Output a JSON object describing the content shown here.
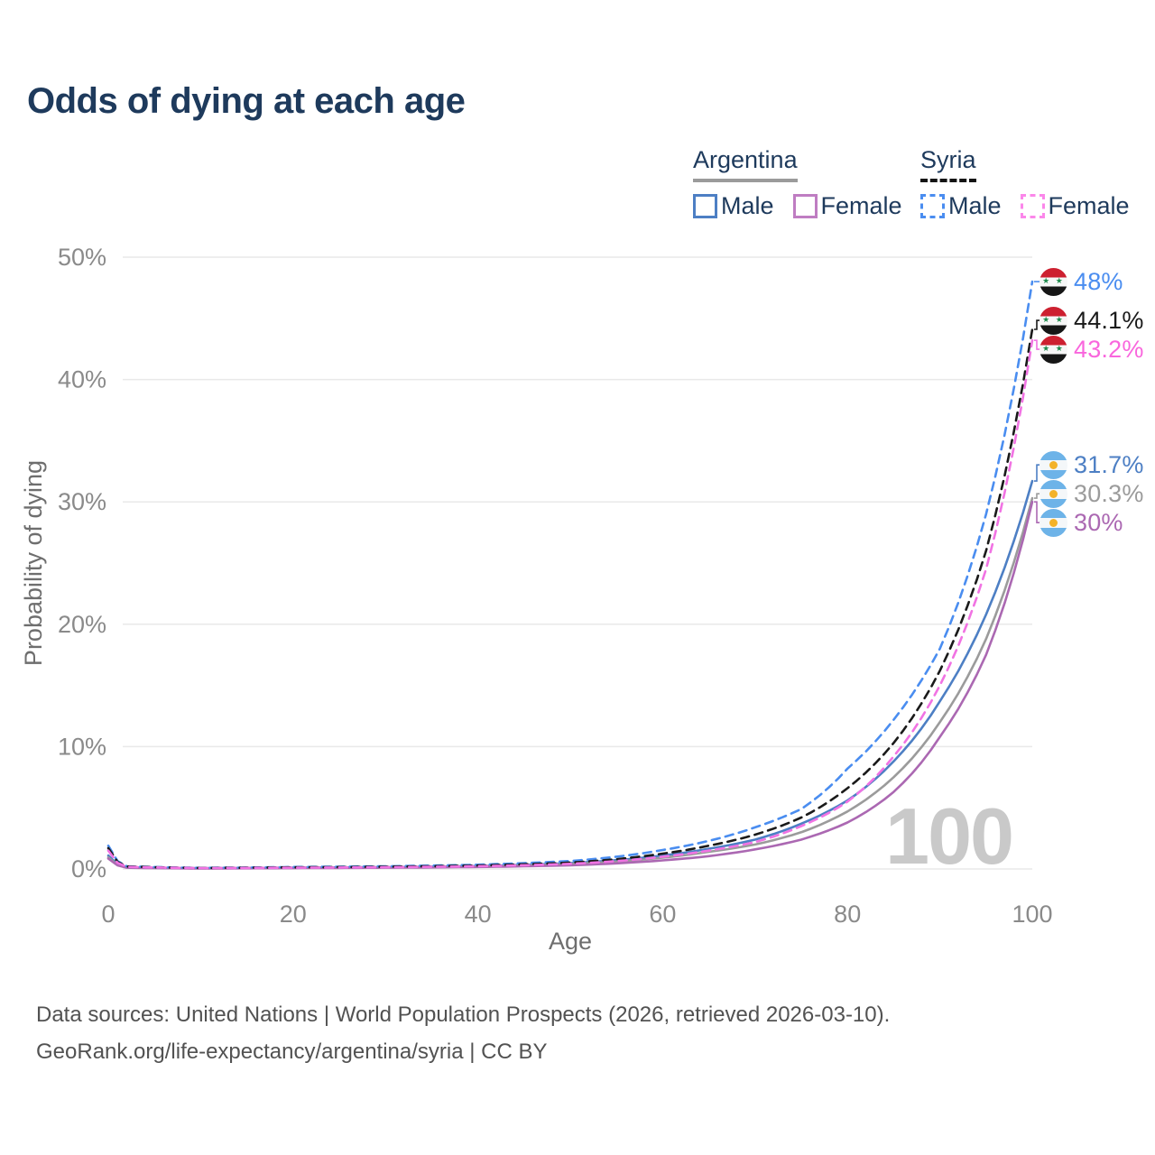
{
  "title": "Odds of dying at each age",
  "legend": {
    "groups": [
      {
        "country": "Argentina",
        "underline": {
          "color": "#9b9b9b",
          "dashed": false
        },
        "male": {
          "label": "Male",
          "color": "#4d7fc4",
          "dashed": false
        },
        "female": {
          "label": "Female",
          "color": "#bf7dc2",
          "dashed": false
        }
      },
      {
        "country": "Syria",
        "underline": {
          "color": "#141414",
          "dashed": true
        },
        "male": {
          "label": "Male",
          "color": "#4a8df0",
          "dashed": true
        },
        "female": {
          "label": "Female",
          "color": "#fb87ea",
          "dashed": true
        }
      }
    ]
  },
  "chart_data": {
    "type": "line",
    "title": "Odds of dying at each age",
    "xlabel": "Age",
    "ylabel": "Probability of dying",
    "xlim": [
      0,
      100
    ],
    "ylim": [
      0,
      50
    ],
    "x_ticks": [
      0,
      20,
      40,
      60,
      80,
      100
    ],
    "y_ticks": [
      0,
      10,
      20,
      30,
      40,
      50
    ],
    "y_tick_suffix": "%",
    "grid": "horizontal",
    "legend_position": "top-right",
    "watermark": "100",
    "series": [
      {
        "id": "argentina-male",
        "name": "Argentina Male",
        "country": "Argentina",
        "sex": "Male",
        "flag": "argentina",
        "color": "#4d7fc4",
        "label_color": "#4d7fc4",
        "dashed": false,
        "end_label": "31.7%",
        "end_value": 31.7,
        "points": [
          [
            0,
            1.1
          ],
          [
            2,
            0.13
          ],
          [
            10,
            0.06
          ],
          [
            20,
            0.11
          ],
          [
            30,
            0.15
          ],
          [
            40,
            0.24
          ],
          [
            50,
            0.48
          ],
          [
            55,
            0.72
          ],
          [
            60,
            1.1
          ],
          [
            65,
            1.65
          ],
          [
            70,
            2.4
          ],
          [
            75,
            3.7
          ],
          [
            80,
            5.6
          ],
          [
            85,
            8.8
          ],
          [
            90,
            13.7
          ],
          [
            95,
            20.8
          ],
          [
            100,
            31.7
          ]
        ]
      },
      {
        "id": "argentina-all",
        "name": "Argentina",
        "country": "Argentina",
        "sex": "Both",
        "flag": "argentina",
        "color": "#9b9b9b",
        "label_color": "#9b9b9b",
        "dashed": false,
        "end_label": "30.3%",
        "end_value": 30.3,
        "points": [
          [
            0,
            0.95
          ],
          [
            2,
            0.11
          ],
          [
            10,
            0.05
          ],
          [
            20,
            0.09
          ],
          [
            30,
            0.13
          ],
          [
            40,
            0.2
          ],
          [
            50,
            0.4
          ],
          [
            55,
            0.6
          ],
          [
            60,
            0.92
          ],
          [
            65,
            1.4
          ],
          [
            70,
            2.0
          ],
          [
            75,
            3.0
          ],
          [
            80,
            4.7
          ],
          [
            85,
            7.5
          ],
          [
            90,
            12.0
          ],
          [
            95,
            18.8
          ],
          [
            100,
            30.3
          ]
        ]
      },
      {
        "id": "argentina-female",
        "name": "Argentina Female",
        "country": "Argentina",
        "sex": "Female",
        "flag": "argentina",
        "color": "#ab68b2",
        "label_color": "#ab68b2",
        "dashed": false,
        "end_label": "30%",
        "end_value": 30,
        "points": [
          [
            0,
            0.85
          ],
          [
            2,
            0.1
          ],
          [
            10,
            0.04
          ],
          [
            20,
            0.07
          ],
          [
            30,
            0.1
          ],
          [
            40,
            0.16
          ],
          [
            50,
            0.3
          ],
          [
            55,
            0.46
          ],
          [
            60,
            0.7
          ],
          [
            65,
            1.05
          ],
          [
            70,
            1.6
          ],
          [
            75,
            2.4
          ],
          [
            80,
            3.8
          ],
          [
            85,
            6.3
          ],
          [
            90,
            10.8
          ],
          [
            95,
            17.5
          ],
          [
            100,
            30
          ]
        ]
      },
      {
        "id": "syria-male",
        "name": "Syria Male",
        "country": "Syria",
        "sex": "Male",
        "flag": "syria",
        "color": "#4a8df0",
        "label_color": "#4a8df0",
        "dashed": true,
        "end_label": "48%",
        "end_value": 48,
        "points": [
          [
            0,
            1.9
          ],
          [
            2,
            0.22
          ],
          [
            10,
            0.09
          ],
          [
            20,
            0.16
          ],
          [
            30,
            0.22
          ],
          [
            40,
            0.35
          ],
          [
            50,
            0.65
          ],
          [
            55,
            1.0
          ],
          [
            60,
            1.55
          ],
          [
            65,
            2.3
          ],
          [
            70,
            3.4
          ],
          [
            75,
            4.9
          ],
          [
            80,
            8.2
          ],
          [
            85,
            12.2
          ],
          [
            90,
            18.0
          ],
          [
            95,
            29.0
          ],
          [
            100,
            48
          ]
        ]
      },
      {
        "id": "syria-all",
        "name": "Syria",
        "country": "Syria",
        "sex": "Both",
        "flag": "syria",
        "color": "#1a1a1a",
        "label_color": "#1a1a1a",
        "dashed": true,
        "end_label": "44.1%",
        "end_value": 44.1,
        "points": [
          [
            0,
            1.7
          ],
          [
            2,
            0.2
          ],
          [
            10,
            0.08
          ],
          [
            20,
            0.13
          ],
          [
            30,
            0.18
          ],
          [
            40,
            0.28
          ],
          [
            50,
            0.52
          ],
          [
            55,
            0.8
          ],
          [
            60,
            1.25
          ],
          [
            65,
            1.9
          ],
          [
            70,
            2.8
          ],
          [
            75,
            4.2
          ],
          [
            80,
            6.6
          ],
          [
            85,
            10.3
          ],
          [
            90,
            16.2
          ],
          [
            95,
            26.0
          ],
          [
            100,
            44.1
          ]
        ]
      },
      {
        "id": "syria-female",
        "name": "Syria Female",
        "country": "Syria",
        "sex": "Female",
        "flag": "syria",
        "color": "#f173e3",
        "label_color": "#f966dd",
        "dashed": true,
        "end_label": "43.2%",
        "end_value": 43.2,
        "points": [
          [
            0,
            1.5
          ],
          [
            2,
            0.17
          ],
          [
            10,
            0.07
          ],
          [
            20,
            0.1
          ],
          [
            30,
            0.14
          ],
          [
            40,
            0.22
          ],
          [
            50,
            0.42
          ],
          [
            55,
            0.64
          ],
          [
            60,
            1.0
          ],
          [
            65,
            1.5
          ],
          [
            70,
            2.2
          ],
          [
            75,
            3.5
          ],
          [
            80,
            5.5
          ],
          [
            85,
            9.2
          ],
          [
            90,
            15.0
          ],
          [
            95,
            24.5
          ],
          [
            100,
            43.2
          ]
        ]
      }
    ]
  },
  "footer": {
    "line1": "Data sources: United Nations | World Population Prospects (2026, retrieved 2026-03-10).",
    "line2": "GeoRank.org/life-expectancy/argentina/syria | CC BY"
  }
}
